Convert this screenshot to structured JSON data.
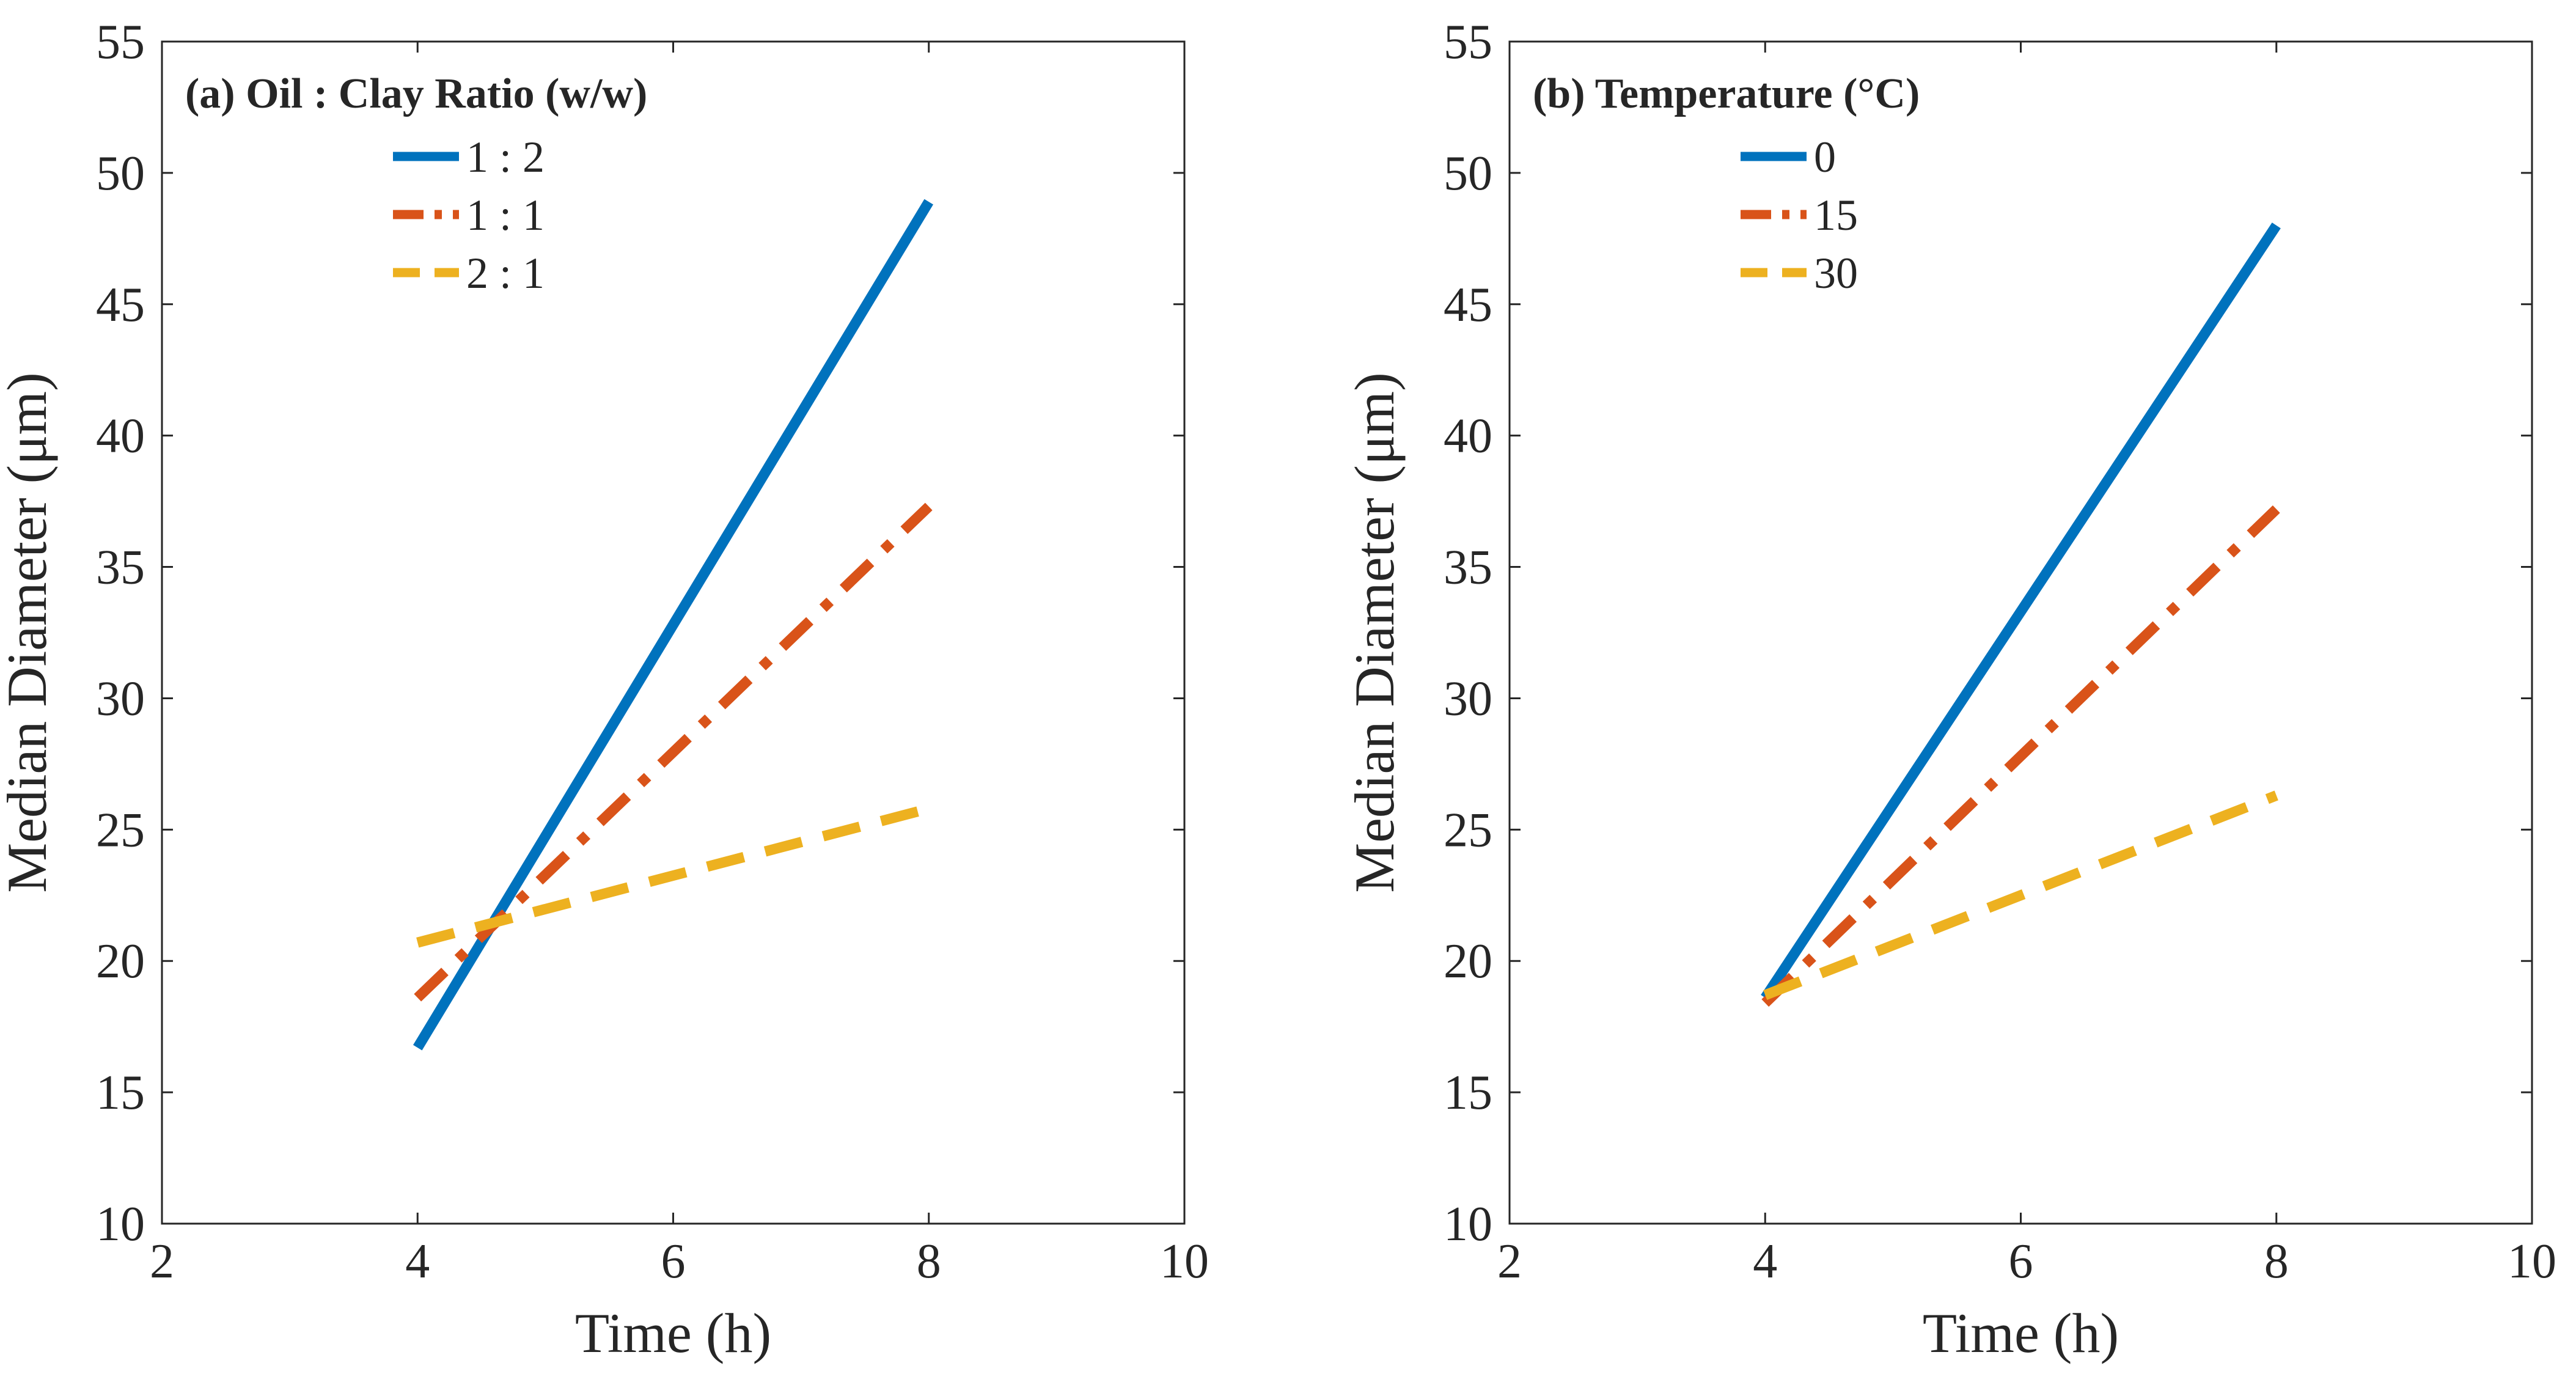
{
  "chart_data": [
    {
      "type": "line",
      "title": "(a) Oil : Clay Ratio (w/w)",
      "xlabel": "Time (h)",
      "ylabel": "Median Diameter (μm)",
      "xlim": [
        2,
        10
      ],
      "ylim": [
        10,
        55
      ],
      "xticks": [
        2,
        4,
        6,
        8,
        10
      ],
      "yticks": [
        10,
        15,
        20,
        25,
        30,
        35,
        40,
        45,
        50,
        55
      ],
      "grid": false,
      "legend_position": "top-left",
      "series": [
        {
          "name": "1 : 2",
          "x": [
            4,
            8
          ],
          "y": [
            16.7,
            48.9
          ],
          "color": "#0072BD",
          "style": "solid"
        },
        {
          "name": "1 : 1",
          "x": [
            4,
            8
          ],
          "y": [
            18.6,
            37.3
          ],
          "color": "#D95319",
          "style": "dashdot"
        },
        {
          "name": "2 : 1",
          "x": [
            4,
            8
          ],
          "y": [
            20.7,
            25.8
          ],
          "color": "#EDB120",
          "style": "dashed"
        }
      ]
    },
    {
      "type": "line",
      "title": "(b) Temperature (°C)",
      "xlabel": "Time (h)",
      "ylabel": "Median Diameter (μm)",
      "xlim": [
        2,
        10
      ],
      "ylim": [
        10,
        55
      ],
      "xticks": [
        2,
        4,
        6,
        8,
        10
      ],
      "yticks": [
        10,
        15,
        20,
        25,
        30,
        35,
        40,
        45,
        50,
        55
      ],
      "grid": false,
      "legend_position": "top-left",
      "series": [
        {
          "name": "0",
          "x": [
            4,
            8
          ],
          "y": [
            18.6,
            48.0
          ],
          "color": "#0072BD",
          "style": "solid"
        },
        {
          "name": "15",
          "x": [
            4,
            8
          ],
          "y": [
            18.4,
            37.2
          ],
          "color": "#D95319",
          "style": "dashdot"
        },
        {
          "name": "30",
          "x": [
            4,
            8
          ],
          "y": [
            18.7,
            26.3
          ],
          "color": "#EDB120",
          "style": "dashed"
        }
      ]
    }
  ]
}
